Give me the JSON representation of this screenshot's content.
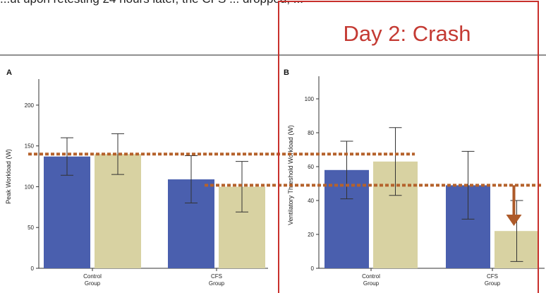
{
  "page": {
    "top_text": "...ut upon retesting 24 hours later, the CFS ... dropped, ...",
    "highlight_title": "Day 2: Crash",
    "colors": {
      "highlight": "#c8302c",
      "day1": "#4a5fae",
      "day2": "#d8d2a2",
      "threshold": "#b5622c",
      "arrow": "#ad5a2a"
    }
  },
  "chart_data": [
    {
      "type": "bar",
      "panel_label": "A",
      "categories": [
        "Control\nGroup",
        "CFS\nGroup"
      ],
      "category_lines": [
        [
          "Control",
          "Group"
        ],
        [
          "CFS",
          "Group"
        ]
      ],
      "series": [
        {
          "values": [
            137,
            109
          ],
          "errors": [
            23,
            29
          ]
        },
        {
          "values": [
            140,
            100
          ],
          "errors": [
            25,
            31
          ]
        }
      ],
      "ylabel": "Peak Workload (W)",
      "ylim": [
        0,
        225
      ],
      "yticks": [
        0,
        50,
        100,
        150,
        200
      ],
      "reference_lines": [
        140
      ]
    },
    {
      "type": "bar",
      "panel_label": "B",
      "categories": [
        "Control\nGroup",
        "CFS\nGroup"
      ],
      "category_lines": [
        [
          "Control",
          "Group"
        ],
        [
          "CFS",
          "Group"
        ]
      ],
      "series": [
        {
          "values": [
            58,
            49
          ],
          "errors": [
            17,
            20
          ]
        },
        {
          "values": [
            63,
            22
          ],
          "errors": [
            20,
            18
          ]
        }
      ],
      "ylabel": "Ventilatory Threshold Workload (W)",
      "ylim": [
        0,
        110
      ],
      "yticks": [
        0,
        20,
        40,
        60,
        80,
        100
      ],
      "reference_lines": [
        49
      ],
      "arrow": {
        "category": "CFS\nGroup",
        "from": 49,
        "to": 25
      }
    }
  ]
}
